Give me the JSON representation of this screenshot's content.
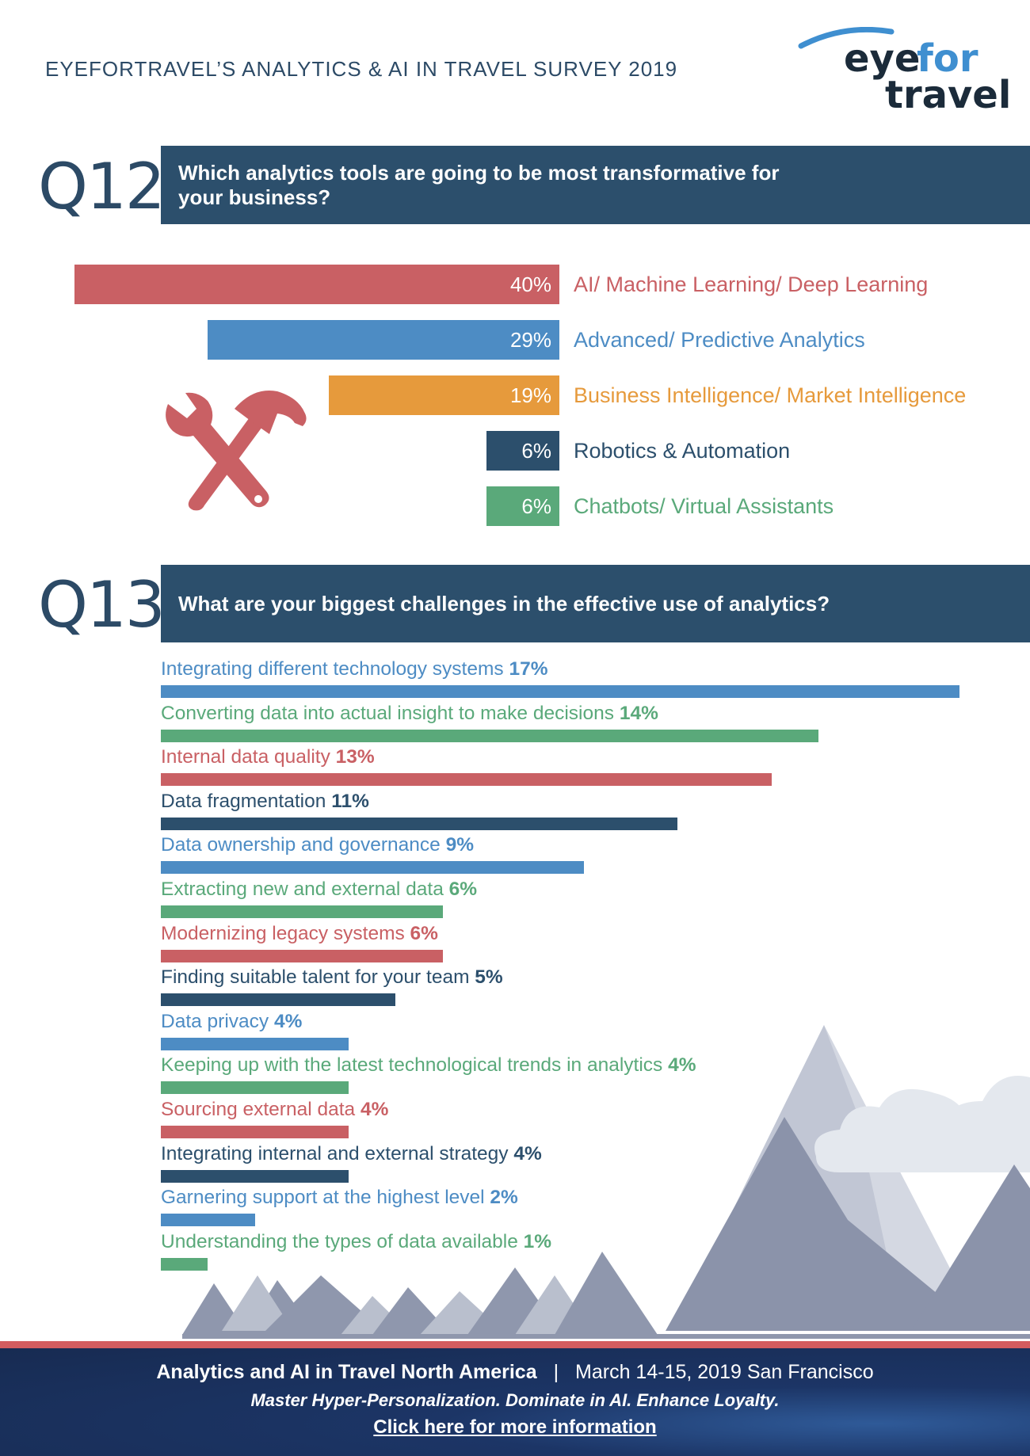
{
  "header": {
    "survey_title": "EYEFORTRAVEL’S ANALYTICS & AI IN TRAVEL SURVEY 2019",
    "logo_top": "eyefor",
    "logo_bottom": "travel",
    "logo_color_dark": "#1b2b3a",
    "logo_color_accent": "#3f8fd0"
  },
  "q12": {
    "number": "Q12",
    "question": "Which analytics tools are going to be most transformative for your business?",
    "question_line1": "Which analytics tools are going to be most transformative for",
    "question_line2": "your business?",
    "icon": "wrench-hammer-icon"
  },
  "q13": {
    "number": "Q13",
    "question": "What are your biggest challenges in the effective use of analytics?"
  },
  "chart_data": [
    {
      "type": "bar",
      "orientation": "horizontal",
      "categories": [
        "AI/ Machine Learning/ Deep Learning",
        "Advanced/ Predictive Analytics",
        "Business Intelligence/ Market Intelligence",
        "Robotics & Automation",
        "Chatbots/ Virtual Assistants"
      ],
      "values": [
        40,
        29,
        19,
        6,
        6
      ],
      "value_labels": [
        "40%",
        "29%",
        "19%",
        "6%",
        "6%"
      ],
      "colors": [
        "#c96064",
        "#4d8cc4",
        "#e69a3c",
        "#2c4f6c",
        "#5aa97a"
      ],
      "title": "Which analytics tools are going to be most transformative for your business?",
      "xlim": [
        0,
        40
      ]
    },
    {
      "type": "bar",
      "orientation": "horizontal",
      "categories": [
        "Integrating different technology systems",
        "Converting data into actual insight to make decisions",
        "Internal data quality",
        "Data fragmentation",
        "Data ownership and governance",
        "Extracting new and external data",
        "Modernizing legacy systems",
        "Finding suitable talent for your team",
        "Data privacy",
        "Keeping up with the latest technological trends in analytics",
        "Sourcing external data",
        "Integrating internal and external strategy",
        "Garnering support at the highest level",
        "Understanding the types of data available"
      ],
      "values": [
        17,
        14,
        13,
        11,
        9,
        6,
        6,
        5,
        4,
        4,
        4,
        4,
        2,
        1
      ],
      "value_labels": [
        "17%",
        "14%",
        "13%",
        "11%",
        "9%",
        "6%",
        "6%",
        "5%",
        "4%",
        "4%",
        "4%",
        "4%",
        "2%",
        "1%"
      ],
      "colors": [
        "#4d8cc4",
        "#5aa97a",
        "#c96064",
        "#2c4f6c",
        "#4d8cc4",
        "#5aa97a",
        "#c96064",
        "#2c4f6c",
        "#4d8cc4",
        "#5aa97a",
        "#c96064",
        "#2c4f6c",
        "#4d8cc4",
        "#5aa97a"
      ],
      "title": "What are your biggest challenges in the effective use of analytics?",
      "xlim": [
        0,
        17
      ]
    }
  ],
  "footer": {
    "event_name": "Analytics and AI in Travel North America",
    "separator": "|",
    "event_details": "March 14-15, 2019 San Francisco",
    "tagline": "Master Hyper-Personalization. Dominate in AI. Enhance Loyalty.",
    "cta": "Click here for more information"
  }
}
